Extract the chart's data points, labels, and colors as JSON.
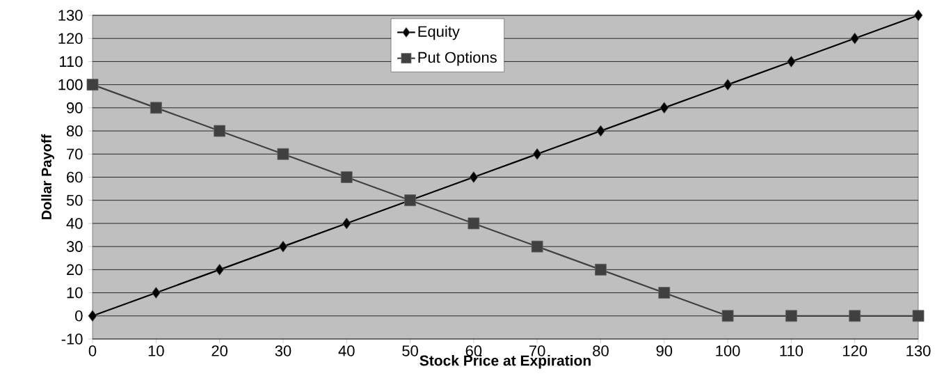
{
  "chart_data": {
    "type": "line",
    "xlabel": "Stock Price at Expiration",
    "ylabel": "Dollar Payoff",
    "x": [
      0,
      10,
      20,
      30,
      40,
      50,
      60,
      70,
      80,
      90,
      100,
      110,
      120,
      130
    ],
    "series": [
      {
        "name": "Equity",
        "color": "#000000",
        "marker": "diamond",
        "values": [
          0,
          10,
          20,
          30,
          40,
          50,
          60,
          70,
          80,
          90,
          100,
          110,
          120,
          130
        ]
      },
      {
        "name": "Put Options",
        "color": "#404040",
        "marker": "square",
        "values": [
          100,
          90,
          80,
          70,
          60,
          50,
          40,
          30,
          20,
          10,
          0,
          0,
          0,
          0
        ]
      }
    ],
    "xlim": [
      0,
      130
    ],
    "ylim": [
      -10,
      130
    ],
    "xticks": [
      0,
      10,
      20,
      30,
      40,
      50,
      60,
      70,
      80,
      90,
      100,
      110,
      120,
      130
    ],
    "yticks": [
      -10,
      0,
      10,
      20,
      30,
      40,
      50,
      60,
      70,
      80,
      90,
      100,
      110,
      120,
      130
    ],
    "grid": "y",
    "legend": "top",
    "line_style": "solid"
  }
}
